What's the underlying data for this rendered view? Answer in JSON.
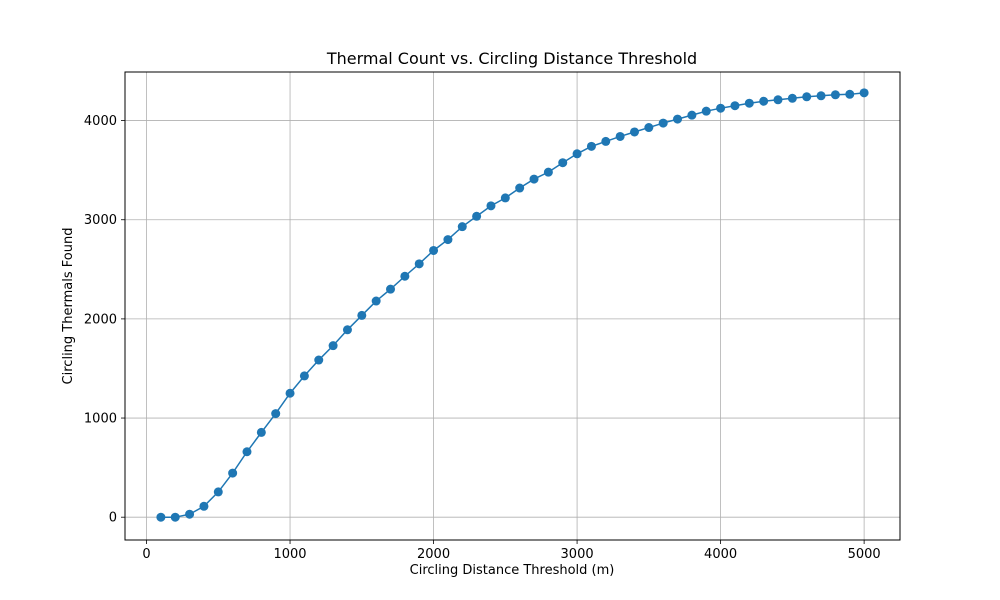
{
  "chart_data": {
    "type": "line",
    "title": "Thermal Count vs. Circling Distance Threshold",
    "xlabel": "Circling Distance Threshold (m)",
    "ylabel": "Circling Thermals Found",
    "xlim": [
      -150,
      5250
    ],
    "ylim": [
      -230,
      4490
    ],
    "xticks": [
      0,
      1000,
      2000,
      3000,
      4000,
      5000
    ],
    "yticks": [
      0,
      1000,
      2000,
      3000,
      4000
    ],
    "grid": true,
    "line_color": "#1f77b4",
    "marker": "circle",
    "series": [
      {
        "x": [
          100,
          200,
          300,
          400,
          500,
          600,
          700,
          800,
          900,
          1000,
          1100,
          1200,
          1300,
          1400,
          1500,
          1600,
          1700,
          1800,
          1900,
          2000,
          2100,
          2200,
          2300,
          2400,
          2500,
          2600,
          2700,
          2800,
          2900,
          3000,
          3100,
          3200,
          3300,
          3400,
          3500,
          3600,
          3700,
          3800,
          3900,
          4000,
          4100,
          4200,
          4300,
          4400,
          4500,
          4600,
          4700,
          4800,
          4900,
          5000
        ],
        "values": [
          0,
          0,
          30,
          110,
          255,
          445,
          660,
          855,
          1045,
          1250,
          1425,
          1585,
          1730,
          1890,
          2035,
          2180,
          2300,
          2430,
          2555,
          2690,
          2800,
          2930,
          3035,
          3140,
          3220,
          3320,
          3410,
          3480,
          3575,
          3665,
          3740,
          3790,
          3840,
          3885,
          3930,
          3975,
          4015,
          4055,
          4095,
          4125,
          4150,
          4175,
          4195,
          4210,
          4225,
          4240,
          4250,
          4260,
          4265,
          4280
        ]
      }
    ]
  }
}
